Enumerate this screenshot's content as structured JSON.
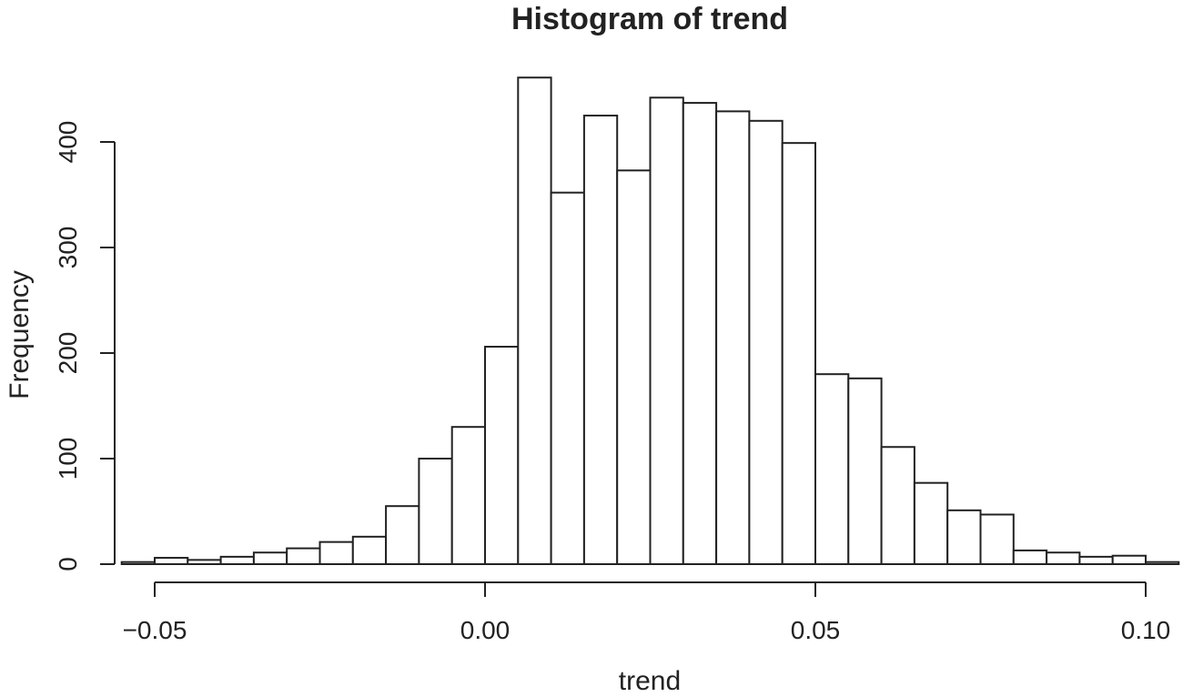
{
  "chart_data": {
    "type": "bar",
    "title": "Histogram of trend",
    "xlabel": "trend",
    "ylabel": "Frequency",
    "xlim": [
      -0.056,
      0.105
    ],
    "ylim": [
      0,
      460
    ],
    "x_ticks": [
      -0.05,
      0.0,
      0.05,
      0.1
    ],
    "x_tick_labels": [
      "−0.05",
      "0.00",
      "0.05",
      "0.10"
    ],
    "y_ticks": [
      0,
      100,
      200,
      300,
      400
    ],
    "y_tick_labels": [
      "0",
      "100",
      "200",
      "300",
      "400"
    ],
    "bin_width": 0.005,
    "grid": false,
    "legend": "none",
    "bins": [
      {
        "start": -0.055,
        "end": -0.05,
        "count": 2
      },
      {
        "start": -0.05,
        "end": -0.045,
        "count": 6
      },
      {
        "start": -0.045,
        "end": -0.04,
        "count": 4
      },
      {
        "start": -0.04,
        "end": -0.035,
        "count": 7
      },
      {
        "start": -0.035,
        "end": -0.03,
        "count": 11
      },
      {
        "start": -0.03,
        "end": -0.025,
        "count": 15
      },
      {
        "start": -0.025,
        "end": -0.02,
        "count": 21
      },
      {
        "start": -0.02,
        "end": -0.015,
        "count": 26
      },
      {
        "start": -0.015,
        "end": -0.01,
        "count": 55
      },
      {
        "start": -0.01,
        "end": -0.005,
        "count": 100
      },
      {
        "start": -0.005,
        "end": 0.0,
        "count": 130
      },
      {
        "start": 0.0,
        "end": 0.005,
        "count": 206
      },
      {
        "start": 0.005,
        "end": 0.01,
        "count": 461
      },
      {
        "start": 0.01,
        "end": 0.015,
        "count": 352
      },
      {
        "start": 0.015,
        "end": 0.02,
        "count": 425
      },
      {
        "start": 0.02,
        "end": 0.025,
        "count": 373
      },
      {
        "start": 0.025,
        "end": 0.03,
        "count": 442
      },
      {
        "start": 0.03,
        "end": 0.035,
        "count": 437
      },
      {
        "start": 0.035,
        "end": 0.04,
        "count": 429
      },
      {
        "start": 0.04,
        "end": 0.045,
        "count": 420
      },
      {
        "start": 0.045,
        "end": 0.05,
        "count": 399
      },
      {
        "start": 0.05,
        "end": 0.055,
        "count": 180
      },
      {
        "start": 0.055,
        "end": 0.06,
        "count": 176
      },
      {
        "start": 0.06,
        "end": 0.065,
        "count": 111
      },
      {
        "start": 0.065,
        "end": 0.07,
        "count": 77
      },
      {
        "start": 0.07,
        "end": 0.075,
        "count": 51
      },
      {
        "start": 0.075,
        "end": 0.08,
        "count": 47
      },
      {
        "start": 0.08,
        "end": 0.085,
        "count": 13
      },
      {
        "start": 0.085,
        "end": 0.09,
        "count": 11
      },
      {
        "start": 0.09,
        "end": 0.095,
        "count": 7
      },
      {
        "start": 0.095,
        "end": 0.1,
        "count": 8
      },
      {
        "start": 0.1,
        "end": 0.105,
        "count": 2
      }
    ]
  }
}
